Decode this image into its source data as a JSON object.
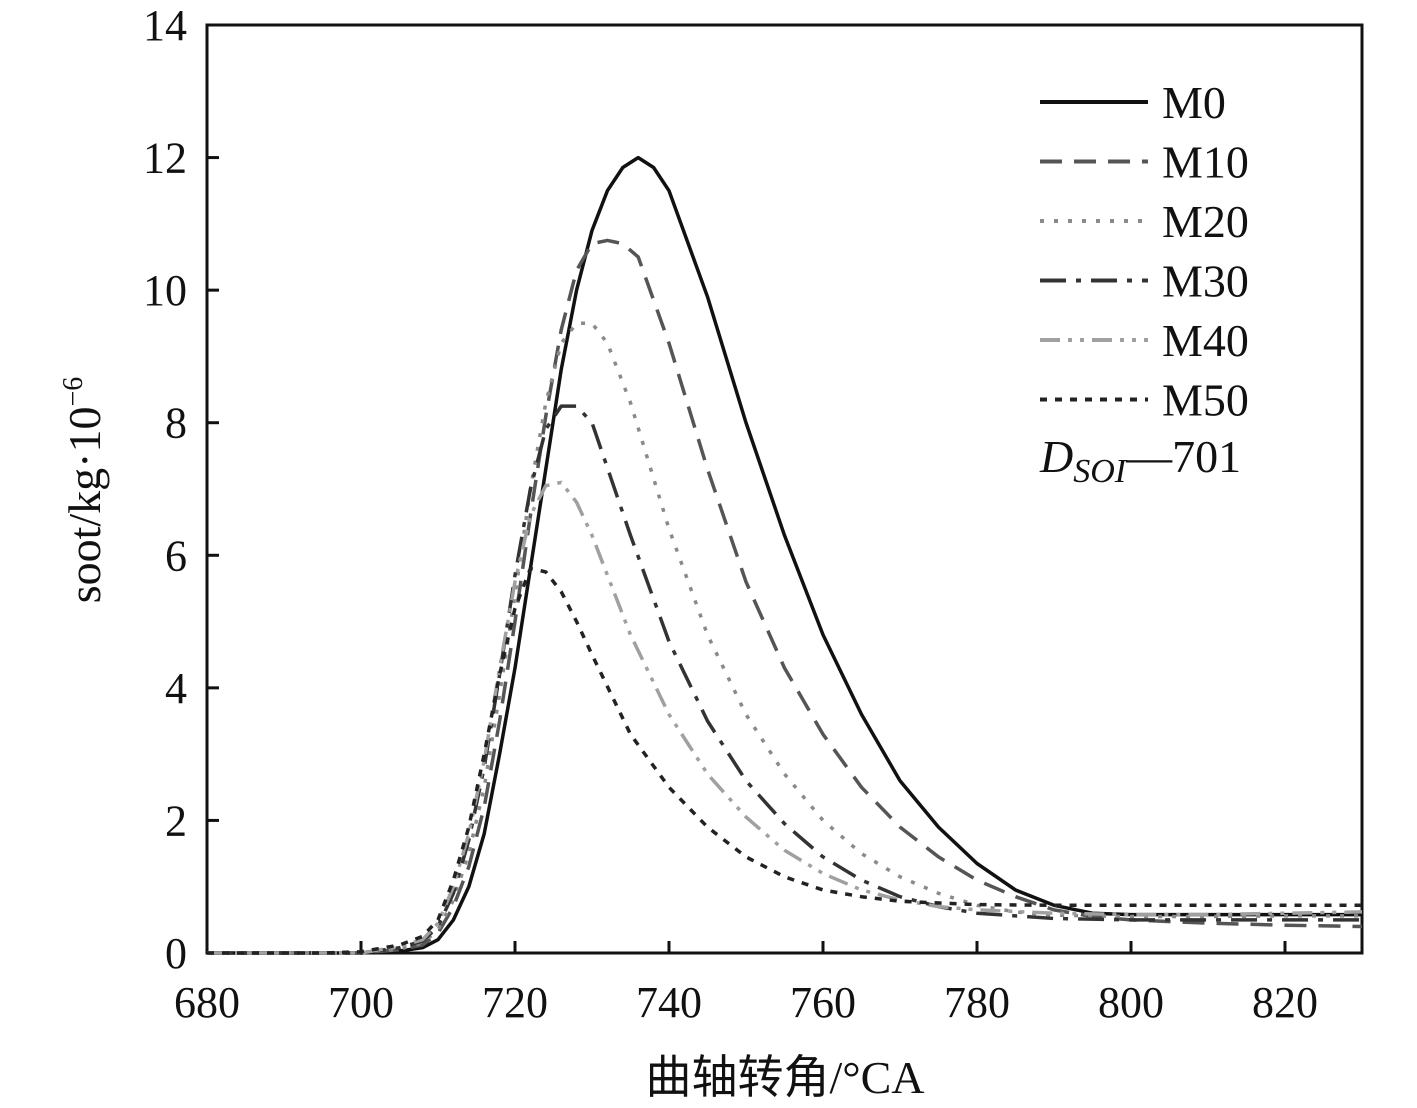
{
  "chart_data": {
    "type": "line",
    "xlabel": "曲轴转角/°CA",
    "ylabel": "soot/kg·10",
    "ylabel_exponent": "−6",
    "xlim": [
      680,
      830
    ],
    "ylim": [
      0,
      14
    ],
    "xticks": [
      680,
      700,
      720,
      740,
      760,
      780,
      800,
      820
    ],
    "yticks": [
      0,
      2,
      4,
      6,
      8,
      10,
      12,
      14
    ],
    "grid": false,
    "legend_position": "top-right",
    "annotation": {
      "symbol": "D",
      "subscript": "SOI",
      "text": "—701"
    },
    "series": [
      {
        "name": "M0",
        "color": "#111111",
        "dash": "",
        "x": [
          680,
          700,
          705,
          708,
          710,
          712,
          714,
          716,
          718,
          720,
          722,
          724,
          726,
          728,
          730,
          732,
          734,
          736,
          738,
          740,
          745,
          750,
          755,
          760,
          765,
          770,
          775,
          780,
          785,
          790,
          795,
          800,
          810,
          820,
          830
        ],
        "y": [
          0,
          0,
          0.03,
          0.08,
          0.2,
          0.5,
          1.0,
          1.8,
          3.0,
          4.3,
          5.8,
          7.3,
          8.8,
          10.0,
          10.9,
          11.5,
          11.85,
          12.0,
          11.85,
          11.5,
          9.9,
          8.0,
          6.3,
          4.8,
          3.6,
          2.6,
          1.9,
          1.35,
          0.95,
          0.72,
          0.6,
          0.58,
          0.58,
          0.58,
          0.58
        ]
      },
      {
        "name": "M10",
        "color": "#555555",
        "dash": "22,12",
        "x": [
          680,
          700,
          705,
          708,
          710,
          712,
          714,
          716,
          718,
          720,
          722,
          724,
          726,
          728,
          730,
          732,
          734,
          736,
          740,
          745,
          750,
          755,
          760,
          765,
          770,
          775,
          780,
          785,
          790,
          795,
          800,
          810,
          820,
          830
        ],
        "y": [
          0,
          0,
          0.05,
          0.12,
          0.3,
          0.7,
          1.3,
          2.2,
          3.5,
          5.0,
          6.6,
          8.1,
          9.4,
          10.3,
          10.7,
          10.75,
          10.7,
          10.5,
          9.2,
          7.3,
          5.6,
          4.3,
          3.3,
          2.5,
          1.9,
          1.45,
          1.1,
          0.85,
          0.65,
          0.55,
          0.5,
          0.45,
          0.42,
          0.4
        ]
      },
      {
        "name": "M20",
        "color": "#8a8a8a",
        "dash": "4,10",
        "x": [
          680,
          700,
          705,
          708,
          710,
          712,
          714,
          716,
          718,
          720,
          722,
          724,
          726,
          728,
          730,
          732,
          735,
          740,
          745,
          750,
          755,
          760,
          765,
          770,
          775,
          780,
          785,
          790,
          800,
          810,
          820,
          830
        ],
        "y": [
          0,
          0,
          0.06,
          0.15,
          0.35,
          0.8,
          1.5,
          2.5,
          3.9,
          5.4,
          7.0,
          8.3,
          9.2,
          9.5,
          9.5,
          9.2,
          8.3,
          6.4,
          4.8,
          3.6,
          2.7,
          2.0,
          1.5,
          1.15,
          0.9,
          0.72,
          0.62,
          0.57,
          0.55,
          0.55,
          0.56,
          0.56
        ]
      },
      {
        "name": "M30",
        "color": "#333333",
        "dash": "26,10,5,10",
        "x": [
          680,
          700,
          705,
          708,
          710,
          712,
          714,
          716,
          718,
          720,
          722,
          724,
          726,
          728,
          730,
          735,
          740,
          745,
          750,
          755,
          760,
          765,
          770,
          775,
          780,
          790,
          800,
          810,
          820,
          830
        ],
        "y": [
          0,
          0,
          0.08,
          0.18,
          0.4,
          0.9,
          1.7,
          2.8,
          4.2,
          5.7,
          7.0,
          7.9,
          8.25,
          8.25,
          8.0,
          6.3,
          4.7,
          3.5,
          2.6,
          1.95,
          1.45,
          1.1,
          0.85,
          0.7,
          0.6,
          0.52,
          0.5,
          0.5,
          0.5,
          0.5
        ]
      },
      {
        "name": "M40",
        "color": "#a0a0a0",
        "dash": "20,8,4,8,4,8",
        "x": [
          680,
          700,
          705,
          708,
          710,
          712,
          714,
          716,
          718,
          720,
          722,
          724,
          726,
          728,
          730,
          735,
          740,
          745,
          750,
          755,
          760,
          765,
          770,
          775,
          780,
          790,
          800,
          810,
          820,
          830
        ],
        "y": [
          0,
          0,
          0.1,
          0.2,
          0.45,
          1.0,
          1.8,
          2.9,
          4.3,
          5.6,
          6.6,
          7.05,
          7.1,
          6.8,
          6.3,
          4.8,
          3.6,
          2.7,
          2.05,
          1.55,
          1.2,
          0.95,
          0.8,
          0.7,
          0.65,
          0.6,
          0.58,
          0.58,
          0.6,
          0.62
        ]
      },
      {
        "name": "M50",
        "color": "#222222",
        "dash": "7,8",
        "x": [
          680,
          695,
          700,
          705,
          708,
          710,
          712,
          714,
          716,
          718,
          720,
          722,
          724,
          726,
          728,
          730,
          735,
          740,
          745,
          750,
          755,
          760,
          765,
          770,
          780,
          790,
          800,
          810,
          820,
          830
        ],
        "y": [
          0,
          0,
          0.02,
          0.12,
          0.25,
          0.5,
          1.1,
          1.9,
          3.0,
          4.2,
          5.2,
          5.8,
          5.75,
          5.45,
          5.0,
          4.5,
          3.3,
          2.5,
          1.9,
          1.45,
          1.15,
          0.95,
          0.85,
          0.78,
          0.73,
          0.72,
          0.72,
          0.72,
          0.72,
          0.72
        ]
      }
    ]
  }
}
